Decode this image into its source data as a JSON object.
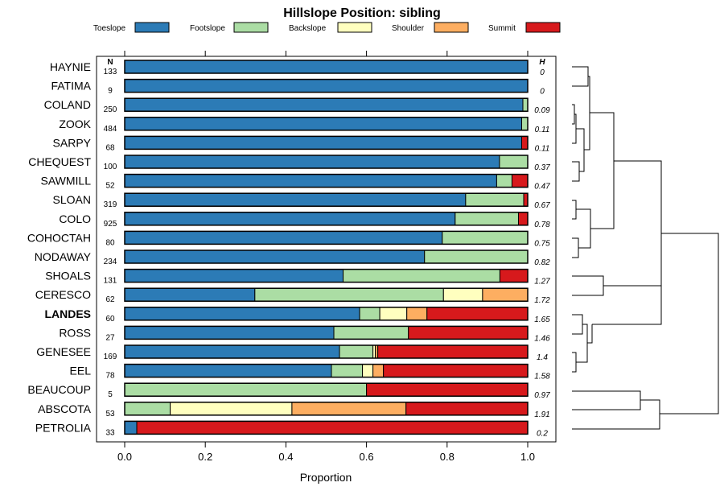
{
  "chart_data": {
    "type": "stacked-bar-horizontal",
    "title": "Hillslope Position: sibling",
    "xlabel": "Proportion",
    "xlim": [
      0,
      1
    ],
    "xticks": [
      "0.0",
      "0.2",
      "0.4",
      "0.6",
      "0.8",
      "1.0"
    ],
    "n_header": "N",
    "h_header": "H",
    "highlight": "LANDES",
    "series": [
      {
        "name": "Toeslope",
        "color": "#2C7BB6"
      },
      {
        "name": "Footslope",
        "color": "#ABDDA4"
      },
      {
        "name": "Backslope",
        "color": "#FFFFBF"
      },
      {
        "name": "Shoulder",
        "color": "#FDAE61"
      },
      {
        "name": "Summit",
        "color": "#D7191C"
      }
    ],
    "rows": [
      {
        "label": "HAYNIE",
        "n": "133",
        "h": "0",
        "values": [
          1.0,
          0,
          0,
          0,
          0
        ]
      },
      {
        "label": "FATIMA",
        "n": "9",
        "h": "0",
        "values": [
          1.0,
          0,
          0,
          0,
          0
        ]
      },
      {
        "label": "COLAND",
        "n": "250",
        "h": "0.09",
        "values": [
          0.988,
          0.012,
          0,
          0,
          0
        ]
      },
      {
        "label": "ZOOK",
        "n": "484",
        "h": "0.11",
        "values": [
          0.985,
          0.015,
          0,
          0,
          0
        ]
      },
      {
        "label": "SARPY",
        "n": "68",
        "h": "0.11",
        "values": [
          0.985,
          0,
          0,
          0,
          0.015
        ]
      },
      {
        "label": "CHEQUEST",
        "n": "100",
        "h": "0.37",
        "values": [
          0.93,
          0.07,
          0,
          0,
          0
        ]
      },
      {
        "label": "SAWMILL",
        "n": "52",
        "h": "0.47",
        "values": [
          0.923,
          0.038,
          0,
          0,
          0.039
        ]
      },
      {
        "label": "SLOAN",
        "n": "319",
        "h": "0.67",
        "values": [
          0.846,
          0.144,
          0,
          0,
          0.01
        ]
      },
      {
        "label": "COLO",
        "n": "925",
        "h": "0.78",
        "values": [
          0.82,
          0.157,
          0,
          0,
          0.023
        ]
      },
      {
        "label": "COHOCTAH",
        "n": "80",
        "h": "0.75",
        "values": [
          0.788,
          0.212,
          0,
          0,
          0
        ]
      },
      {
        "label": "NODAWAY",
        "n": "234",
        "h": "0.82",
        "values": [
          0.744,
          0.256,
          0,
          0,
          0
        ]
      },
      {
        "label": "SHOALS",
        "n": "131",
        "h": "1.27",
        "values": [
          0.542,
          0.389,
          0,
          0,
          0.069
        ]
      },
      {
        "label": "CERESCO",
        "n": "62",
        "h": "1.72",
        "values": [
          0.323,
          0.468,
          0.097,
          0.112,
          0
        ]
      },
      {
        "label": "LANDES",
        "n": "60",
        "h": "1.65",
        "values": [
          0.583,
          0.05,
          0.067,
          0.05,
          0.25
        ]
      },
      {
        "label": "ROSS",
        "n": "27",
        "h": "1.46",
        "values": [
          0.519,
          0.185,
          0,
          0,
          0.296
        ]
      },
      {
        "label": "GENESEE",
        "n": "169",
        "h": "1.4",
        "values": [
          0.533,
          0.083,
          0.006,
          0.006,
          0.372
        ]
      },
      {
        "label": "EEL",
        "n": "78",
        "h": "1.58",
        "values": [
          0.513,
          0.077,
          0.026,
          0.026,
          0.358
        ]
      },
      {
        "label": "BEAUCOUP",
        "n": "5",
        "h": "0.97",
        "values": [
          0,
          0.6,
          0,
          0,
          0.4
        ]
      },
      {
        "label": "ABSCOTA",
        "n": "53",
        "h": "1.91",
        "values": [
          0,
          0.113,
          0.302,
          0.283,
          0.302
        ]
      },
      {
        "label": "PETROLIA",
        "n": "33",
        "h": "0.2",
        "values": [
          0.03,
          0,
          0,
          0,
          0.97
        ]
      }
    ]
  }
}
